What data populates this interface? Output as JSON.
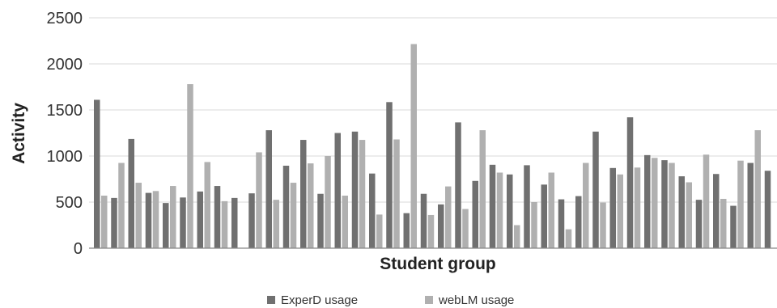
{
  "chart_data": {
    "type": "bar",
    "xlabel": "Student group",
    "ylabel": "Activity",
    "ylim": [
      0,
      2500
    ],
    "yticks": [
      0,
      500,
      1000,
      1500,
      2000,
      2500
    ],
    "grid": "horizontal",
    "legend": "bottom",
    "series": [
      {
        "name": "ExperD usage",
        "color": "#707070",
        "values": [
          1610,
          545,
          1185,
          600,
          490,
          550,
          615,
          675,
          545,
          595,
          1280,
          895,
          1175,
          590,
          1250,
          1265,
          810,
          1585,
          380,
          590,
          475,
          1365,
          730,
          905,
          800,
          900,
          690,
          530,
          565,
          1265,
          870,
          1420,
          1010,
          955,
          780,
          525,
          805,
          460,
          925,
          840
        ]
      },
      {
        "name": "webLM usage",
        "color": "#b0b0b0",
        "values": [
          570,
          925,
          710,
          620,
          675,
          1780,
          935,
          510,
          0,
          1040,
          525,
          710,
          920,
          1000,
          570,
          1175,
          365,
          1180,
          2215,
          360,
          670,
          425,
          1280,
          820,
          250,
          500,
          820,
          205,
          925,
          495,
          800,
          875,
          980,
          925,
          715,
          1015,
          535,
          950,
          1280,
          0
        ]
      }
    ]
  }
}
